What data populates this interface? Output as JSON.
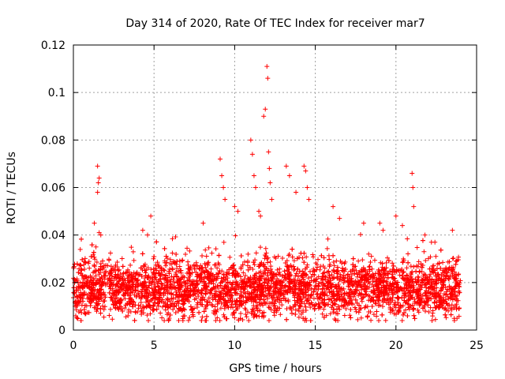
{
  "chart_data": {
    "type": "scatter",
    "title": "Day 314 of 2020, Rate Of TEC Index for receiver mar7",
    "xlabel": "GPS time / hours",
    "ylabel": "ROTI / TECUs",
    "xlim": [
      0,
      25
    ],
    "ylim": [
      0,
      0.12
    ],
    "xticks": [
      "0",
      "5",
      "10",
      "15",
      "20",
      "25"
    ],
    "xtick_values": [
      0,
      5,
      10,
      15,
      20,
      25
    ],
    "yticks": [
      "0",
      "0.02",
      "0.04",
      "0.06",
      "0.08",
      "0.1",
      "0.12"
    ],
    "ytick_values": [
      0,
      0.02,
      0.04,
      0.06,
      0.08,
      0.1,
      0.12
    ],
    "grid": true,
    "marker": "+",
    "marker_color": "#ff0000",
    "series": [
      {
        "name": "ROTI",
        "note": "dense band of points between ~0.005 and ~0.035 over 0-24 h; notable spikes listed",
        "x": [
          1.4,
          1.5,
          1.5,
          1.55,
          1.6,
          1.6,
          1.7,
          1.3,
          4.3,
          4.6,
          4.8,
          9.1,
          9.2,
          9.3,
          9.4,
          10.0,
          10.2,
          11.0,
          11.1,
          11.2,
          11.3,
          11.5,
          11.6,
          11.8,
          11.9,
          12.0,
          12.05,
          12.1,
          12.15,
          12.2,
          12.3,
          13.2,
          13.4,
          13.8,
          14.3,
          14.4,
          14.5,
          14.6,
          16.1,
          16.5,
          18.0,
          19.0,
          19.2,
          20.0,
          20.4,
          21.0,
          21.05,
          21.1,
          21.8,
          22.2,
          23.5
        ],
        "y": [
          0.035,
          0.058,
          0.069,
          0.062,
          0.064,
          0.041,
          0.04,
          0.045,
          0.042,
          0.04,
          0.048,
          0.072,
          0.065,
          0.06,
          0.055,
          0.052,
          0.05,
          0.08,
          0.074,
          0.065,
          0.06,
          0.05,
          0.048,
          0.09,
          0.093,
          0.111,
          0.106,
          0.075,
          0.068,
          0.062,
          0.055,
          0.069,
          0.065,
          0.058,
          0.069,
          0.067,
          0.06,
          0.055,
          0.052,
          0.047,
          0.045,
          0.045,
          0.042,
          0.048,
          0.044,
          0.066,
          0.06,
          0.052,
          0.04,
          0.037,
          0.042
        ]
      }
    ]
  }
}
